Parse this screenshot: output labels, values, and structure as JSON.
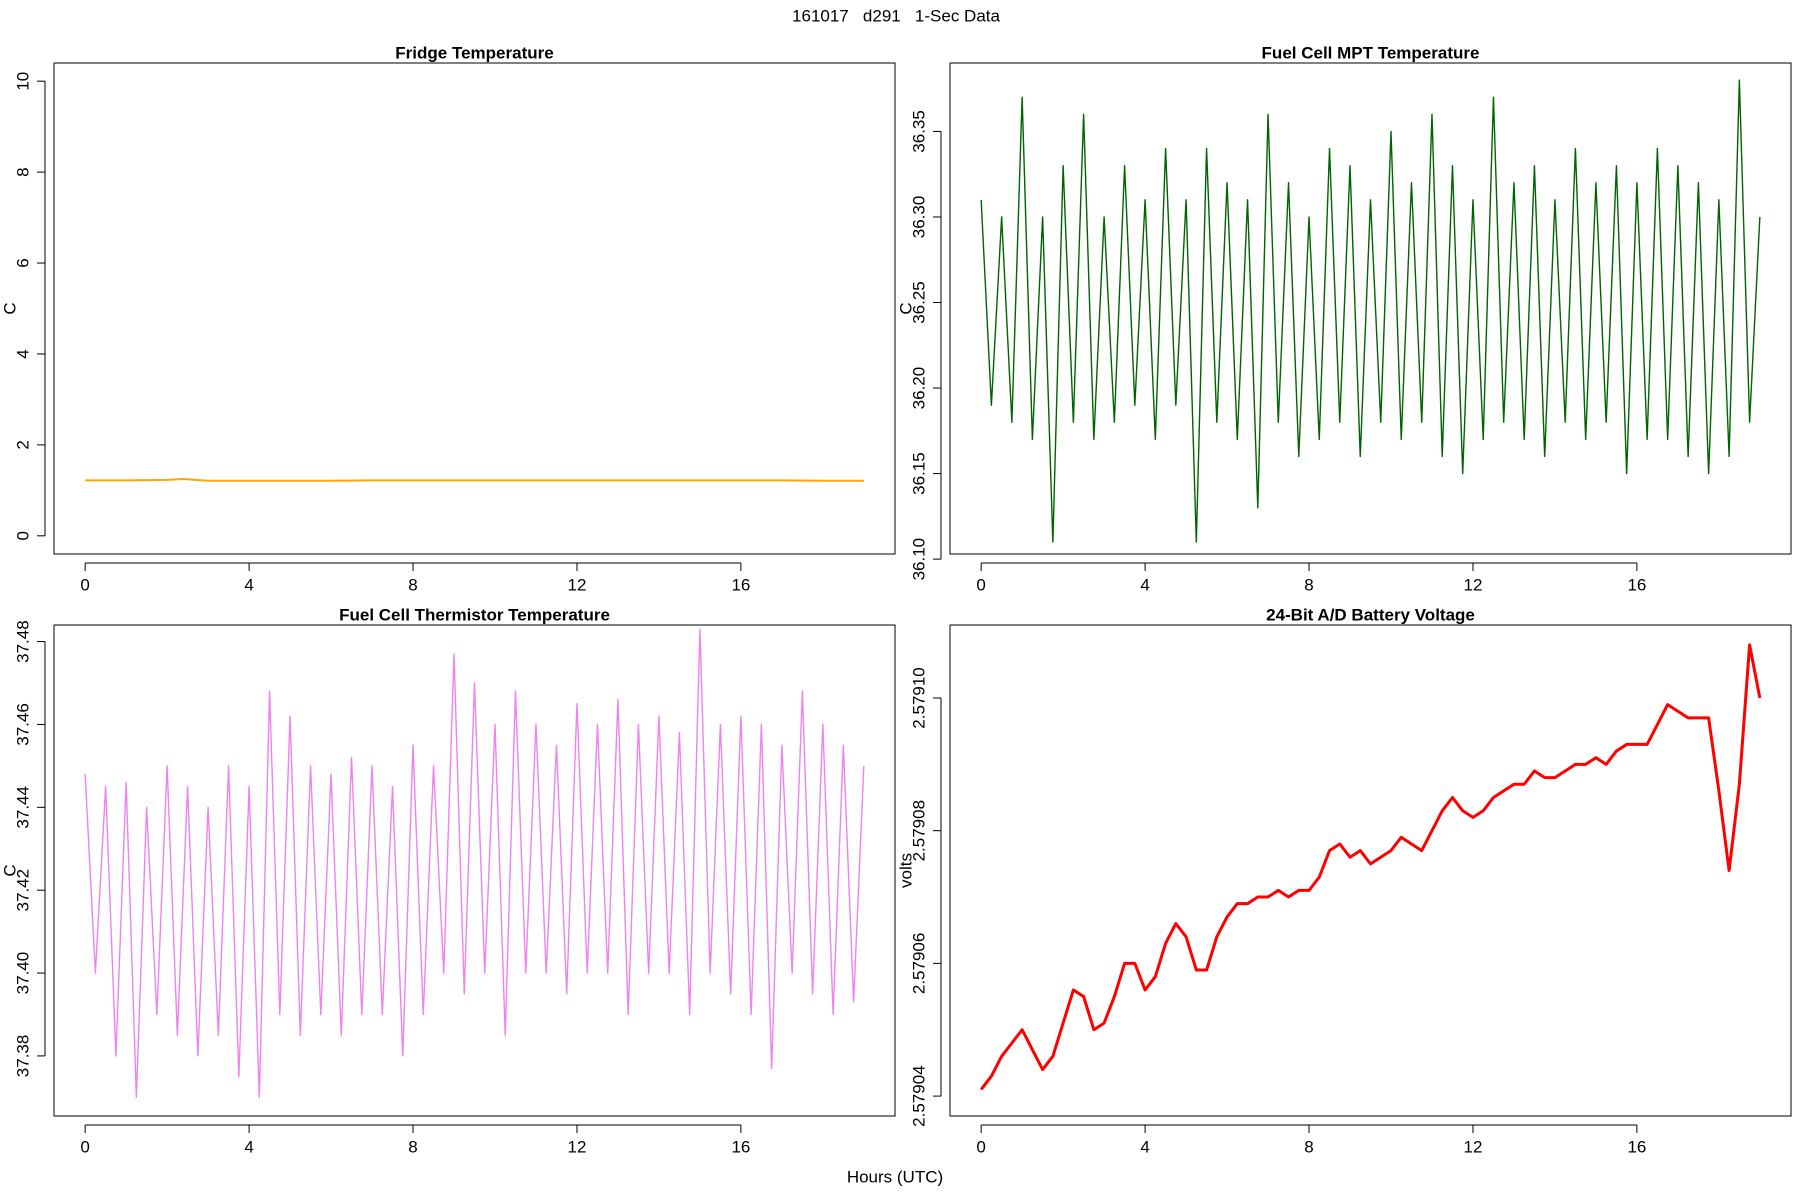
{
  "title": "161017   d291   1-Sec Data",
  "x_label": "Hours (UTC)",
  "chart_data": [
    {
      "type": "line",
      "title": "Fridge Temperature",
      "y_label": "C",
      "color": "#ffa500",
      "x": [
        0,
        1,
        2,
        2.4,
        3,
        4,
        5,
        6,
        7,
        8,
        9,
        10,
        11,
        12,
        13,
        14,
        15,
        16,
        17,
        18,
        19
      ],
      "values": [
        1.22,
        1.22,
        1.23,
        1.25,
        1.21,
        1.21,
        1.21,
        1.21,
        1.22,
        1.22,
        1.22,
        1.22,
        1.22,
        1.22,
        1.22,
        1.22,
        1.22,
        1.22,
        1.22,
        1.21,
        1.21
      ],
      "xlim": [
        -0.76,
        19.76
      ],
      "xticks": [
        0,
        4,
        8,
        12,
        16
      ],
      "ylim": [
        -0.4,
        10.4
      ],
      "yticks": [
        0,
        2,
        4,
        6,
        8,
        10
      ]
    },
    {
      "type": "line",
      "title": "Fuel Cell MPT Temperature",
      "y_label": "C",
      "color": "#006400",
      "x": [
        0,
        0.25,
        0.5,
        0.75,
        1,
        1.25,
        1.5,
        1.75,
        2,
        2.25,
        2.5,
        2.75,
        3,
        3.25,
        3.5,
        3.75,
        4,
        4.25,
        4.5,
        4.75,
        5,
        5.25,
        5.5,
        5.75,
        6,
        6.25,
        6.5,
        6.75,
        7,
        7.25,
        7.5,
        7.75,
        8,
        8.25,
        8.5,
        8.75,
        9,
        9.25,
        9.5,
        9.75,
        10,
        10.25,
        10.5,
        10.75,
        11,
        11.25,
        11.5,
        11.75,
        12,
        12.25,
        12.5,
        12.75,
        13,
        13.25,
        13.5,
        13.75,
        14,
        14.25,
        14.5,
        14.75,
        15,
        15.25,
        15.5,
        15.75,
        16,
        16.25,
        16.5,
        16.75,
        17,
        17.25,
        17.5,
        17.75,
        18,
        18.25,
        18.5,
        18.75,
        19
      ],
      "values": [
        36.31,
        36.19,
        36.3,
        36.18,
        36.37,
        36.17,
        36.3,
        36.11,
        36.33,
        36.18,
        36.36,
        36.17,
        36.3,
        36.18,
        36.33,
        36.19,
        36.31,
        36.17,
        36.34,
        36.19,
        36.31,
        36.11,
        36.34,
        36.18,
        36.32,
        36.17,
        36.31,
        36.13,
        36.36,
        36.18,
        36.32,
        36.16,
        36.3,
        36.17,
        36.34,
        36.18,
        36.33,
        36.16,
        36.31,
        36.18,
        36.35,
        36.17,
        36.32,
        36.18,
        36.36,
        36.16,
        36.33,
        36.15,
        36.31,
        36.17,
        36.37,
        36.18,
        36.32,
        36.17,
        36.33,
        36.16,
        36.31,
        36.18,
        36.34,
        36.17,
        36.32,
        36.18,
        36.33,
        36.15,
        36.32,
        36.17,
        36.34,
        36.17,
        36.33,
        36.16,
        36.32,
        36.15,
        36.31,
        36.16,
        36.38,
        36.18,
        36.3
      ],
      "xlim": [
        -0.76,
        19.76
      ],
      "xticks": [
        0,
        4,
        8,
        12,
        16
      ],
      "ylim": [
        36.103,
        36.39
      ],
      "yticks": [
        {
          "value": 36.1,
          "label": "36.10"
        },
        36.15,
        {
          "value": 36.2,
          "label": "36.20"
        },
        36.25,
        {
          "value": 36.3,
          "label": "36.30"
        },
        36.35
      ]
    },
    {
      "type": "line",
      "title": "Fuel Cell Thermistor Temperature",
      "y_label": "C",
      "color": "#ee82ee",
      "x": [
        0,
        0.25,
        0.5,
        0.75,
        1,
        1.25,
        1.5,
        1.75,
        2,
        2.25,
        2.5,
        2.75,
        3,
        3.25,
        3.5,
        3.75,
        4,
        4.25,
        4.5,
        4.75,
        5,
        5.25,
        5.5,
        5.75,
        6,
        6.25,
        6.5,
        6.75,
        7,
        7.25,
        7.5,
        7.75,
        8,
        8.25,
        8.5,
        8.75,
        9,
        9.25,
        9.5,
        9.75,
        10,
        10.25,
        10.5,
        10.75,
        11,
        11.25,
        11.5,
        11.75,
        12,
        12.25,
        12.5,
        12.75,
        13,
        13.25,
        13.5,
        13.75,
        14,
        14.25,
        14.5,
        14.75,
        15,
        15.25,
        15.5,
        15.75,
        16,
        16.25,
        16.5,
        16.75,
        17,
        17.25,
        17.5,
        17.75,
        18,
        18.25,
        18.5,
        18.75,
        19
      ],
      "values": [
        37.448,
        37.4,
        37.445,
        37.38,
        37.446,
        37.37,
        37.44,
        37.39,
        37.45,
        37.385,
        37.445,
        37.38,
        37.44,
        37.385,
        37.45,
        37.375,
        37.445,
        37.37,
        37.468,
        37.39,
        37.462,
        37.385,
        37.45,
        37.39,
        37.448,
        37.385,
        37.452,
        37.39,
        37.45,
        37.39,
        37.445,
        37.38,
        37.455,
        37.39,
        37.45,
        37.4,
        37.477,
        37.395,
        37.47,
        37.4,
        37.46,
        37.385,
        37.468,
        37.4,
        37.46,
        37.4,
        37.455,
        37.395,
        37.465,
        37.4,
        37.46,
        37.4,
        37.466,
        37.39,
        37.46,
        37.4,
        37.462,
        37.4,
        37.458,
        37.39,
        37.483,
        37.4,
        37.46,
        37.395,
        37.462,
        37.39,
        37.46,
        37.377,
        37.455,
        37.4,
        37.468,
        37.395,
        37.46,
        37.39,
        37.455,
        37.393,
        37.45
      ],
      "xlim": [
        -0.76,
        19.76
      ],
      "xticks": [
        0,
        4,
        8,
        12,
        16
      ],
      "ylim": [
        37.3655,
        37.484
      ],
      "yticks": [
        37.38,
        {
          "value": 37.4,
          "label": "37.40"
        },
        37.42,
        37.44,
        37.46,
        37.48
      ]
    },
    {
      "type": "line",
      "title": "24-Bit A/D Battery Voltage",
      "y_label": "volts",
      "color": "#ff0000",
      "x": [
        0,
        0.25,
        0.5,
        0.75,
        1,
        1.25,
        1.5,
        1.75,
        2,
        2.25,
        2.5,
        2.75,
        3,
        3.25,
        3.5,
        3.75,
        4,
        4.25,
        4.5,
        4.75,
        5,
        5.25,
        5.5,
        5.75,
        6,
        6.25,
        6.5,
        6.75,
        7,
        7.25,
        7.5,
        7.75,
        8,
        8.25,
        8.5,
        8.75,
        9,
        9.25,
        9.5,
        9.75,
        10,
        10.25,
        10.5,
        10.75,
        11,
        11.25,
        11.5,
        11.75,
        12,
        12.25,
        12.5,
        12.75,
        13,
        13.25,
        13.5,
        13.75,
        14,
        14.25,
        14.5,
        14.75,
        15,
        15.25,
        15.5,
        15.75,
        16,
        16.25,
        16.5,
        16.75,
        17,
        17.25,
        17.5,
        17.75,
        18,
        18.25,
        18.5,
        18.75,
        19
      ],
      "values": [
        2.579041,
        2.579043,
        2.579046,
        2.579048,
        2.57905,
        2.579047,
        2.579044,
        2.579046,
        2.579051,
        2.579056,
        2.579055,
        2.57905,
        2.579051,
        2.579055,
        2.57906,
        2.57906,
        2.579056,
        2.579058,
        2.579063,
        2.579066,
        2.579064,
        2.579059,
        2.579059,
        2.579064,
        2.579067,
        2.579069,
        2.579069,
        2.57907,
        2.57907,
        2.579071,
        2.57907,
        2.579071,
        2.579071,
        2.579073,
        2.579077,
        2.579078,
        2.579076,
        2.579077,
        2.579075,
        2.579076,
        2.579077,
        2.579079,
        2.579078,
        2.579077,
        2.57908,
        2.579083,
        2.579085,
        2.579083,
        2.579082,
        2.579083,
        2.579085,
        2.579086,
        2.579087,
        2.579087,
        2.579089,
        2.579088,
        2.579088,
        2.579089,
        2.57909,
        2.57909,
        2.579091,
        2.57909,
        2.579092,
        2.579093,
        2.579093,
        2.579093,
        2.579096,
        2.579099,
        2.579098,
        2.579097,
        2.579097,
        2.579097,
        2.579086,
        2.579074,
        2.579087,
        2.579108,
        2.5791
      ],
      "xlim": [
        -0.76,
        19.76
      ],
      "xticks": [
        0,
        4,
        8,
        12,
        16
      ],
      "ylim": [
        2.579037,
        2.579111
      ],
      "yticks": [
        2.57904,
        2.57906,
        2.57908,
        {
          "value": 2.5791,
          "label": "2.57910"
        }
      ]
    }
  ]
}
